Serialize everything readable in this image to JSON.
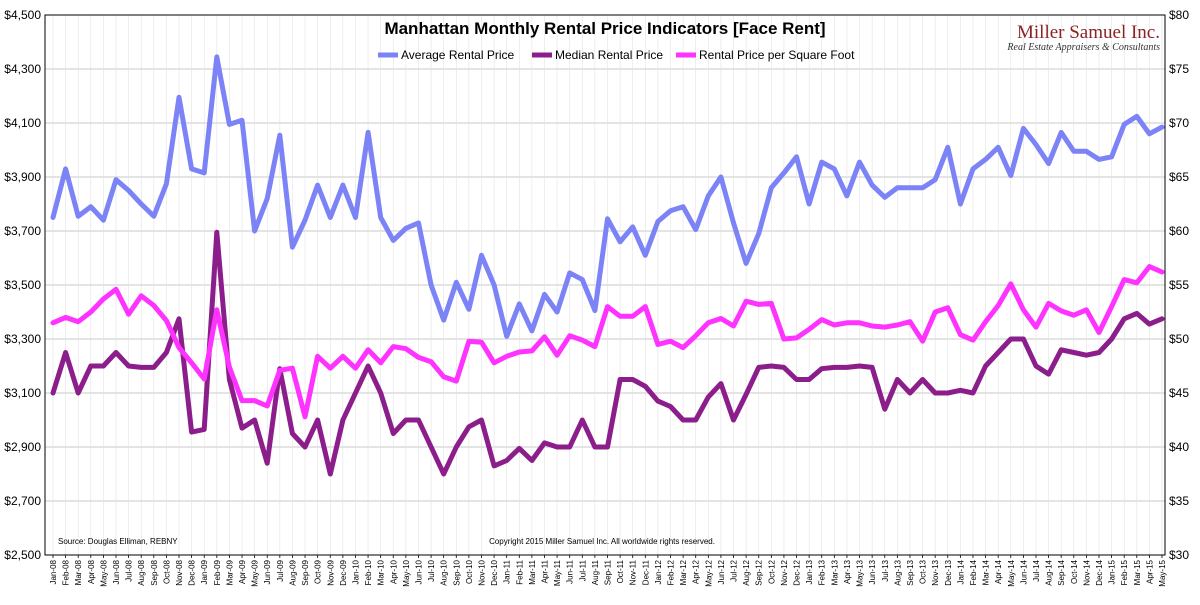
{
  "logo": {
    "name": "Miller Samuel Inc.",
    "tagline": "Real Estate Appraisers & Consultants"
  },
  "footer": {
    "source": "Source: Douglas Elliman, REBNY",
    "copyright": "Copyright 2015 Miller Samuel Inc.  All worldwide rights reserved."
  },
  "chart_data": {
    "type": "line",
    "title": "Manhattan Monthly Rental Price Indicators [Face Rent]",
    "legend_position": "top",
    "grid": true,
    "left_axis": {
      "ylim": [
        2500,
        4500
      ],
      "ticks": [
        "$2,500",
        "$2,700",
        "$2,900",
        "$3,100",
        "$3,300",
        "$3,500",
        "$3,700",
        "$3,900",
        "$4,100",
        "$4,300",
        "$4,500"
      ]
    },
    "right_axis": {
      "ylim": [
        30,
        80
      ],
      "ticks": [
        "$30",
        "$35",
        "$40",
        "$45",
        "$50",
        "$55",
        "$60",
        "$65",
        "$70",
        "$75",
        "$80"
      ]
    },
    "categories": [
      "Jan-08",
      "Feb-08",
      "Mar-08",
      "Apr-08",
      "May-08",
      "Jun-08",
      "Jul-08",
      "Aug-08",
      "Sep-08",
      "Oct-08",
      "Nov-08",
      "Dec-08",
      "Jan-09",
      "Feb-09",
      "Mar-09",
      "Apr-09",
      "May-09",
      "Jun-09",
      "Jul-09",
      "Aug-09",
      "Sep-09",
      "Oct-09",
      "Nov-09",
      "Dec-09",
      "Jan-10",
      "Feb-10",
      "Mar-10",
      "Apr-10",
      "May-10",
      "Jun-10",
      "Jul-10",
      "Aug-10",
      "Sep-10",
      "Oct-10",
      "Nov-10",
      "Dec-10",
      "Jan-11",
      "Feb-11",
      "Mar-11",
      "Apr-11",
      "May-11",
      "Jun-11",
      "Jul-11",
      "Aug-11",
      "Sep-11",
      "Oct-11",
      "Nov-11",
      "Dec-11",
      "Jan-12",
      "Feb-12",
      "Mar-12",
      "Apr-12",
      "May-12",
      "Jun-12",
      "Jul-12",
      "Aug-12",
      "Sep-12",
      "Oct-12",
      "Nov-12",
      "Dec-12",
      "Jan-13",
      "Feb-13",
      "Mar-13",
      "Apr-13",
      "May-13",
      "Jun-13",
      "Jul-13",
      "Aug-13",
      "Sep-13",
      "Oct-13",
      "Nov-13",
      "Dec-13",
      "Jan-14",
      "Feb-14",
      "Mar-14",
      "Apr-14",
      "May-14",
      "Jun-14",
      "Jul-14",
      "Aug-14",
      "Sep-14",
      "Oct-14",
      "Nov-14",
      "Dec-14",
      "Jan-15",
      "Feb-15",
      "Mar-15",
      "Apr-15",
      "May-15"
    ],
    "xtick_labels": [
      "Jan-08",
      "Feb-08",
      "Mar-08",
      "Apr-08",
      "May-08",
      "Jun-08",
      "Jul-08",
      "Aug-08",
      "Sep-08",
      "Oct-08",
      "Nov-08",
      "Dec-08",
      "Jan-09",
      "Feb-09",
      "Mar-09",
      "Apr-09",
      "May-09",
      "Jun-09",
      "Jul-09",
      "Aug-09",
      "Sep-09",
      "Oct-09",
      "Nov-09",
      "Dec-09",
      "Jan-10",
      "Feb-10",
      "Mar-10",
      "Apr-10",
      "May-10",
      "Jun-10",
      "Jul-10",
      "Aug-10",
      "Sep-10",
      "Oct-10",
      "Nov-10",
      "Dec-10",
      "Jan-11",
      "Feb-11",
      "Mar-11",
      "Apr-11",
      "May-11",
      "Jun-11",
      "Jul-11",
      "Aug-11",
      "Sep-11",
      "Oct-11",
      "Nov-11",
      "Dec-11",
      "Jan-12",
      "Feb-12",
      "Mar-12",
      "Apr-12",
      "May-12",
      "Jun-12",
      "Jul-12",
      "Aug-12",
      "Sep-12",
      "Oct-12",
      "Nov-12",
      "Dec-12",
      "Jan-13",
      "Feb-13",
      "Mar-13",
      "Apr-13",
      "May-13",
      "Jun-13",
      "Jul-13",
      "Aug-13",
      "Sep-13",
      "Oct-13",
      "Nov-13",
      "Dec-13",
      "Jan-14",
      "Feb-14",
      "Mar-14",
      "Apr-14",
      "May-14",
      "Jun-14",
      "Jul-14",
      "Aug-14",
      "Sep-14",
      "Oct-14",
      "Nov-14",
      "Dec-14",
      "Jan-15",
      "Feb-15",
      "Mar-15",
      "Apr-15",
      "May-15"
    ],
    "series": [
      {
        "name": "Average Rental Price",
        "axis": "left",
        "color": "#7c83f7",
        "values": [
          3750,
          3930,
          3755,
          3790,
          3740,
          3890,
          3850,
          3800,
          3755,
          3875,
          4195,
          3930,
          3915,
          4345,
          4095,
          4110,
          3700,
          3820,
          4055,
          3640,
          3740,
          3870,
          3750,
          3870,
          3750,
          4065,
          3750,
          3665,
          3710,
          3730,
          3500,
          3370,
          3510,
          3410,
          3610,
          3500,
          3310,
          3430,
          3330,
          3465,
          3400,
          3545,
          3520,
          3405,
          3745,
          3660,
          3715,
          3610,
          3735,
          3775,
          3790,
          3705,
          3830,
          3900,
          3730,
          3580,
          3690,
          3860,
          3915,
          3975,
          3800,
          3955,
          3930,
          3830,
          3955,
          3870,
          3825,
          3860,
          3860,
          3860,
          3890,
          4010,
          3800,
          3930,
          3965,
          4010,
          3905,
          4080,
          4020,
          3950,
          4065,
          3995,
          3995,
          3965,
          3975,
          4095,
          4125,
          4060,
          4085
        ]
      },
      {
        "name": "Median Rental Price",
        "axis": "left",
        "color": "#8b1e8b",
        "values": [
          3100,
          3250,
          3100,
          3200,
          3200,
          3250,
          3200,
          3195,
          3195,
          3250,
          3375,
          2955,
          2965,
          3695,
          3150,
          2970,
          3000,
          2840,
          3190,
          2950,
          2900,
          3000,
          2800,
          3000,
          3100,
          3200,
          3100,
          2950,
          3000,
          3000,
          2900,
          2800,
          2900,
          2975,
          3000,
          2830,
          2850,
          2895,
          2850,
          2915,
          2900,
          2900,
          3000,
          2900,
          2900,
          3150,
          3150,
          3125,
          3070,
          3050,
          3000,
          3000,
          3085,
          3135,
          3000,
          3095,
          3195,
          3200,
          3195,
          3150,
          3150,
          3190,
          3195,
          3195,
          3200,
          3195,
          3040,
          3150,
          3100,
          3150,
          3100,
          3100,
          3110,
          3100,
          3200,
          3250,
          3300,
          3300,
          3200,
          3170,
          3260,
          3250,
          3240,
          3250,
          3300,
          3375,
          3395,
          3355,
          3375
        ]
      },
      {
        "name": "Rental Price per Square Foot",
        "axis": "right",
        "color": "#ff33ff",
        "values": [
          51.5,
          52,
          51.6,
          52.5,
          53.7,
          54.6,
          52.3,
          54,
          53.1,
          51.7,
          49.2,
          47.8,
          46.3,
          52.7,
          47.4,
          44.3,
          44.3,
          43.8,
          47.1,
          47.3,
          42.8,
          48.4,
          47.3,
          48.4,
          47.3,
          49,
          47.8,
          49.3,
          49.1,
          48.3,
          47.9,
          46.5,
          46.1,
          49.8,
          49.7,
          47.8,
          48.4,
          48.8,
          48.9,
          50.2,
          48.5,
          50.3,
          49.9,
          49.3,
          53,
          52.1,
          52.1,
          53,
          49.5,
          49.8,
          49.2,
          50.3,
          51.5,
          51.9,
          51.2,
          53.5,
          53.2,
          53.3,
          50,
          50.1,
          50.9,
          51.8,
          51.3,
          51.5,
          51.5,
          51.2,
          51.1,
          51.3,
          51.6,
          49.8,
          52.5,
          52.9,
          50.4,
          49.9,
          51.6,
          53.1,
          55.1,
          52.7,
          51.1,
          53.3,
          52.6,
          52.2,
          52.7,
          50.6,
          53,
          55.5,
          55.2,
          56.7,
          56.2
        ]
      }
    ]
  }
}
